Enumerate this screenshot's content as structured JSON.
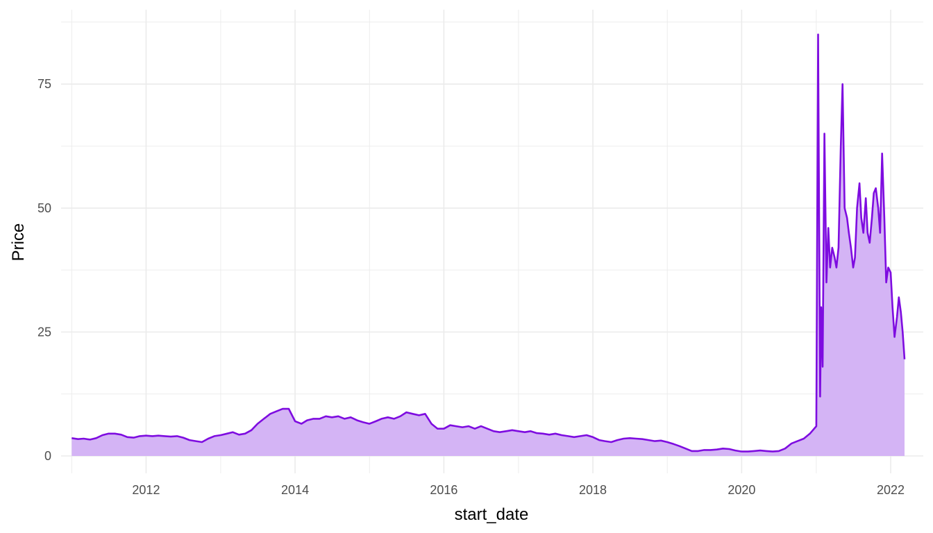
{
  "chart_data": {
    "type": "area",
    "xlabel": "start_date",
    "ylabel": "Price",
    "x_ticks": [
      "2012",
      "2014",
      "2016",
      "2018",
      "2020",
      "2022"
    ],
    "y_ticks": [
      "0",
      "25",
      "50",
      "75"
    ],
    "xlim": [
      "2010-11-10",
      "2022-06-10"
    ],
    "ylim": [
      -3.5,
      90
    ],
    "grid": true,
    "legend": "none",
    "colors": {
      "line": "#7e0ce0",
      "fill": "#d4b4f5",
      "grid": "#ebebeb"
    },
    "series": [
      {
        "x": [
          "2011-01-01",
          "2011-02-01",
          "2011-03-01",
          "2011-04-01",
          "2011-05-01",
          "2011-06-01",
          "2011-07-01",
          "2011-08-01",
          "2011-09-01",
          "2011-10-01",
          "2011-11-01",
          "2011-12-01",
          "2012-01-01",
          "2012-02-01",
          "2012-03-01",
          "2012-04-01",
          "2012-05-01",
          "2012-06-01",
          "2012-07-01",
          "2012-08-01",
          "2012-09-01",
          "2012-10-01",
          "2012-11-01",
          "2012-12-01",
          "2013-01-01",
          "2013-02-01",
          "2013-03-01",
          "2013-04-01",
          "2013-05-01",
          "2013-06-01",
          "2013-07-01",
          "2013-08-01",
          "2013-09-01",
          "2013-10-01",
          "2013-11-01",
          "2013-12-01",
          "2014-01-01",
          "2014-02-01",
          "2014-03-01",
          "2014-04-01",
          "2014-05-01",
          "2014-06-01",
          "2014-07-01",
          "2014-08-01",
          "2014-09-01",
          "2014-10-01",
          "2014-11-01",
          "2014-12-01",
          "2015-01-01",
          "2015-02-01",
          "2015-03-01",
          "2015-04-01",
          "2015-05-01",
          "2015-06-01",
          "2015-07-01",
          "2015-08-01",
          "2015-09-01",
          "2015-10-01",
          "2015-11-01",
          "2015-12-01",
          "2016-01-01",
          "2016-02-01",
          "2016-03-01",
          "2016-04-01",
          "2016-05-01",
          "2016-06-01",
          "2016-07-01",
          "2016-08-01",
          "2016-09-01",
          "2016-10-01",
          "2016-11-01",
          "2016-12-01",
          "2017-01-01",
          "2017-02-01",
          "2017-03-01",
          "2017-04-01",
          "2017-05-01",
          "2017-06-01",
          "2017-07-01",
          "2017-08-01",
          "2017-09-01",
          "2017-10-01",
          "2017-11-01",
          "2017-12-01",
          "2018-01-01",
          "2018-02-01",
          "2018-03-01",
          "2018-04-01",
          "2018-05-01",
          "2018-06-01",
          "2018-07-01",
          "2018-08-01",
          "2018-09-01",
          "2018-10-01",
          "2018-11-01",
          "2018-12-01",
          "2019-01-01",
          "2019-02-01",
          "2019-03-01",
          "2019-04-01",
          "2019-05-01",
          "2019-06-01",
          "2019-07-01",
          "2019-08-01",
          "2019-09-01",
          "2019-10-01",
          "2019-11-01",
          "2019-12-01",
          "2020-01-01",
          "2020-02-01",
          "2020-03-01",
          "2020-04-01",
          "2020-05-01",
          "2020-06-01",
          "2020-07-01",
          "2020-08-01",
          "2020-09-01",
          "2020-10-01",
          "2020-11-01",
          "2020-12-01",
          "2021-01-01",
          "2021-01-10",
          "2021-01-20",
          "2021-01-25",
          "2021-02-01",
          "2021-02-10",
          "2021-02-20",
          "2021-03-01",
          "2021-03-10",
          "2021-03-20",
          "2021-04-01",
          "2021-04-10",
          "2021-04-20",
          "2021-05-01",
          "2021-05-10",
          "2021-05-20",
          "2021-06-01",
          "2021-06-10",
          "2021-06-20",
          "2021-07-01",
          "2021-07-10",
          "2021-07-20",
          "2021-08-01",
          "2021-08-10",
          "2021-08-20",
          "2021-09-01",
          "2021-09-10",
          "2021-09-20",
          "2021-10-01",
          "2021-10-10",
          "2021-10-20",
          "2021-11-01",
          "2021-11-10",
          "2021-11-20",
          "2021-12-01",
          "2021-12-10",
          "2021-12-20",
          "2022-01-01",
          "2022-01-10",
          "2022-01-20",
          "2022-02-01",
          "2022-02-10",
          "2022-02-20",
          "2022-03-01",
          "2022-03-10"
        ],
        "y": [
          3.6,
          3.4,
          3.5,
          3.3,
          3.6,
          4.2,
          4.5,
          4.5,
          4.3,
          3.8,
          3.7,
          4.0,
          4.1,
          4.0,
          4.1,
          4.0,
          3.9,
          4.0,
          3.7,
          3.2,
          3.0,
          2.8,
          3.5,
          4.0,
          4.2,
          4.5,
          4.8,
          4.3,
          4.5,
          5.2,
          6.5,
          7.5,
          8.5,
          9.0,
          9.5,
          9.5,
          7.0,
          6.5,
          7.2,
          7.5,
          7.5,
          8.0,
          7.8,
          8.0,
          7.5,
          7.8,
          7.2,
          6.8,
          6.5,
          7.0,
          7.5,
          7.8,
          7.5,
          8.0,
          8.8,
          8.5,
          8.2,
          8.5,
          6.5,
          5.5,
          5.5,
          6.2,
          6.0,
          5.8,
          6.0,
          5.5,
          6.0,
          5.5,
          5.0,
          4.8,
          5.0,
          5.2,
          5.0,
          4.8,
          5.0,
          4.6,
          4.5,
          4.3,
          4.5,
          4.2,
          4.0,
          3.8,
          4.0,
          4.2,
          3.8,
          3.2,
          3.0,
          2.8,
          3.2,
          3.5,
          3.6,
          3.5,
          3.4,
          3.2,
          3.0,
          3.1,
          2.8,
          2.4,
          2.0,
          1.5,
          1.0,
          1.0,
          1.2,
          1.2,
          1.3,
          1.5,
          1.4,
          1.1,
          0.9,
          0.9,
          1.0,
          1.1,
          1.0,
          0.9,
          1.0,
          1.5,
          2.5,
          3.0,
          3.5,
          4.5,
          6.0,
          85.0,
          12.0,
          30.0,
          18.0,
          65.0,
          35.0,
          46.0,
          38.0,
          42.0,
          40.0,
          38.0,
          42.0,
          62.0,
          75.0,
          50.0,
          48.0,
          45.0,
          42.0,
          38.0,
          40.0,
          50.0,
          55.0,
          48.0,
          45.0,
          52.0,
          45.0,
          43.0,
          48.0,
          53.0,
          54.0,
          50.0,
          45.0,
          61.0,
          48.0,
          35.0,
          38.0,
          37.0,
          30.0,
          24.0,
          28.0,
          32.0,
          29.0,
          25.0,
          19.5
        ]
      }
    ]
  }
}
